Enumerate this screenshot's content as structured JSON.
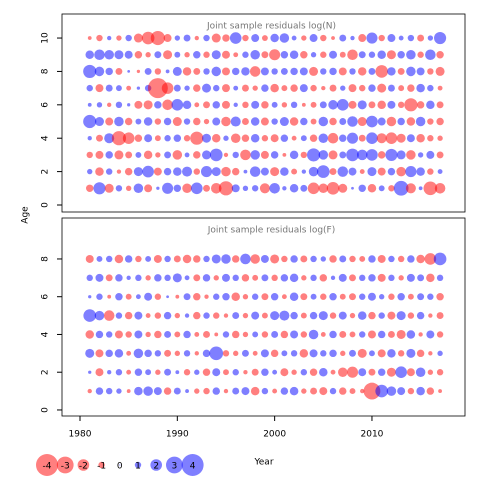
{
  "chart_data": [
    {
      "type": "bubble",
      "title": "Joint sample residuals log(N)",
      "x": [
        1981,
        1982,
        1983,
        1984,
        1985,
        1986,
        1987,
        1988,
        1989,
        1990,
        1991,
        1992,
        1993,
        1994,
        1995,
        1996,
        1997,
        1998,
        1999,
        2000,
        2001,
        2002,
        2003,
        2004,
        2005,
        2006,
        2007,
        2008,
        2009,
        2010,
        2011,
        2012,
        2013,
        2014,
        2015,
        2016,
        2017
      ],
      "ages": [
        1,
        2,
        3,
        4,
        5,
        6,
        7,
        8,
        9,
        10
      ],
      "values": [
        [
          -1.2,
          2.1,
          -1.5,
          1.0,
          -0.8,
          1.6,
          -1.3,
          0.4,
          1.9,
          1.2,
          -1.6,
          2.0,
          -1.1,
          -1.8,
          -2.5,
          1.3,
          0.8,
          1.0,
          -1.7,
          1.8,
          0.6,
          1.4,
          1.1,
          -2.0,
          -1.6,
          -2.2,
          -1.5,
          0.3,
          1.2,
          -1.4,
          0.9,
          -1.0,
          2.6,
          -1.7,
          0.5,
          -2.4,
          -1.8
        ],
        [
          0.8,
          -1.4,
          1.0,
          -0.6,
          -1.2,
          1.5,
          2.0,
          -1.3,
          1.2,
          1.4,
          1.7,
          -1.0,
          1.9,
          1.5,
          -1.6,
          -1.2,
          0.5,
          1.8,
          1.3,
          -1.5,
          1.4,
          -0.9,
          0.6,
          1.6,
          2.2,
          -1.1,
          1.8,
          1.3,
          -0.7,
          1.5,
          -1.3,
          1.2,
          -1.6,
          1.9,
          1.4,
          -1.0,
          0.7
        ],
        [
          -1.0,
          -1.3,
          1.2,
          -1.5,
          -1.1,
          0.9,
          -1.4,
          -0.8,
          1.1,
          -1.6,
          0.7,
          -1.2,
          1.5,
          2.2,
          -0.6,
          1.0,
          -1.8,
          1.6,
          -1.3,
          1.2,
          -0.5,
          1.4,
          -1.0,
          2.3,
          1.6,
          -1.5,
          1.1,
          2.2,
          1.8,
          2.0,
          -1.2,
          2.1,
          1.5,
          -1.6,
          0.8,
          1.3,
          -1.1
        ],
        [
          0.6,
          -1.1,
          1.7,
          -2.5,
          -2.0,
          -1.2,
          1.3,
          -0.9,
          1.0,
          1.2,
          -1.0,
          -2.3,
          1.5,
          -1.4,
          0.8,
          -1.6,
          -1.2,
          1.4,
          -1.0,
          -1.3,
          1.2,
          -0.7,
          0.9,
          -1.2,
          1.6,
          -1.8,
          1.2,
          1.9,
          -1.1,
          2.0,
          -1.7,
          -2.0,
          -1.5,
          1.3,
          -1.4,
          -1.0,
          -0.8
        ],
        [
          2.3,
          1.5,
          -1.3,
          1.6,
          -1.2,
          0.9,
          1.4,
          -1.0,
          1.2,
          -1.5,
          1.0,
          -1.2,
          -0.8,
          1.3,
          -1.6,
          1.7,
          -1.1,
          1.4,
          -1.3,
          1.0,
          1.5,
          -1.4,
          1.2,
          -0.9,
          1.6,
          -1.2,
          1.1,
          1.8,
          -1.5,
          2.0,
          1.3,
          -1.6,
          1.2,
          -1.4,
          1.6,
          -1.0,
          -1.2
        ],
        [
          0.5,
          0.8,
          -0.6,
          1.0,
          0.4,
          -1.3,
          -1.5,
          1.2,
          -1.8,
          2.0,
          1.4,
          -0.7,
          -1.1,
          1.2,
          -1.3,
          0.6,
          -1.0,
          1.3,
          -1.2,
          0.9,
          -0.8,
          1.0,
          -0.5,
          -0.9,
          1.1,
          1.6,
          2.0,
          -1.3,
          1.5,
          -1.1,
          -1.4,
          1.3,
          -1.0,
          -2.3,
          -1.2,
          1.4,
          -1.1
        ],
        [
          1.0,
          -1.3,
          1.1,
          0.9,
          -0.7,
          0.4,
          1.0,
          -3.6,
          -2.0,
          1.1,
          0.8,
          -1.2,
          1.5,
          1.0,
          -1.3,
          0.7,
          -1.1,
          -0.8,
          1.2,
          -1.4,
          -0.9,
          -1.2,
          1.3,
          -1.0,
          -0.6,
          -1.1,
          0.8,
          -1.3,
          -1.0,
          1.2,
          -1.5,
          1.1,
          -0.9,
          -1.2,
          1.4,
          1.0,
          -0.7
        ],
        [
          2.3,
          1.6,
          1.2,
          -1.1,
          0.3,
          -0.4,
          1.1,
          -1.0,
          0.5,
          1.5,
          -1.4,
          -1.1,
          1.0,
          1.6,
          -1.3,
          1.2,
          1.4,
          -1.8,
          1.3,
          1.0,
          1.1,
          1.2,
          1.3,
          -1.5,
          1.0,
          1.2,
          -1.3,
          1.0,
          -1.4,
          1.1,
          -2.2,
          1.4,
          -1.1,
          1.6,
          1.3,
          -1.0,
          -1.5
        ],
        [
          1.4,
          1.8,
          1.6,
          1.5,
          1.3,
          -1.2,
          -0.8,
          1.1,
          -1.5,
          0.9,
          -0.8,
          1.2,
          -1.0,
          1.5,
          -1.3,
          -0.7,
          1.0,
          1.6,
          -1.1,
          -1.9,
          1.2,
          1.4,
          -1.2,
          0.8,
          -1.0,
          1.3,
          -0.9,
          -1.8,
          1.1,
          1.0,
          1.4,
          -1.5,
          1.2,
          1.6,
          -1.0,
          1.8,
          -1.2
        ],
        [
          -0.5,
          -1.0,
          0.6,
          -0.8,
          1.0,
          -1.5,
          -2.2,
          -2.5,
          -1.3,
          0.8,
          1.1,
          -0.6,
          1.0,
          -1.5,
          -1.2,
          2.0,
          -1.0,
          1.3,
          -0.9,
          1.4,
          1.6,
          0.7,
          -0.8,
          1.3,
          -1.0,
          -0.5,
          1.1,
          0.6,
          -1.3,
          1.9,
          -1.0,
          1.3,
          0.7,
          1.0,
          -1.1,
          0.8,
          2.1
        ]
      ],
      "xlim": [
        1978.15,
        2019.56
      ],
      "ylim": [
        -0.42,
        11.44
      ],
      "yticks": [
        0,
        2,
        4,
        6,
        8,
        10
      ],
      "colors": {
        "positive": "#0000ff",
        "negative": "#ff0000"
      }
    },
    {
      "type": "bubble",
      "title": "Joint sample residuals log(F)",
      "x": [
        1981,
        1982,
        1983,
        1984,
        1985,
        1986,
        1987,
        1988,
        1989,
        1990,
        1991,
        1992,
        1993,
        1994,
        1995,
        1996,
        1997,
        1998,
        1999,
        2000,
        2001,
        2002,
        2003,
        2004,
        2005,
        2006,
        2007,
        2008,
        2009,
        2010,
        2011,
        2012,
        2013,
        2014,
        2015,
        2016,
        2017
      ],
      "ages": [
        1,
        2,
        3,
        4,
        5,
        6,
        7,
        8
      ],
      "values": [
        [
          -0.6,
          1.2,
          1.0,
          0.8,
          -0.5,
          1.4,
          1.6,
          1.3,
          -1.2,
          1.1,
          0.5,
          -0.8,
          -1.0,
          1.2,
          -0.6,
          1.1,
          1.3,
          -1.4,
          1.0,
          -0.7,
          1.2,
          1.4,
          -0.8,
          -1.1,
          -1.3,
          1.0,
          -1.2,
          -0.9,
          -0.6,
          -3.0,
          2.2,
          1.6,
          1.3,
          -1.0,
          1.4,
          -1.2,
          -0.5
        ],
        [
          0.4,
          -1.3,
          0.6,
          1.0,
          -0.7,
          1.2,
          0.9,
          -0.8,
          1.1,
          0.5,
          -1.0,
          0.8,
          -1.2,
          1.3,
          -0.9,
          1.0,
          -0.6,
          -1.1,
          1.2,
          0.7,
          -1.3,
          -0.8,
          1.0,
          -1.2,
          1.4,
          -0.7,
          -1.6,
          -1.9,
          1.3,
          -1.1,
          1.2,
          -1.5,
          2.0,
          -1.3,
          1.6,
          -0.8,
          -1.0
        ],
        [
          1.5,
          -1.3,
          1.2,
          1.4,
          -0.7,
          1.6,
          1.2,
          1.0,
          -1.1,
          -0.8,
          1.0,
          -0.6,
          1.2,
          2.4,
          -1.0,
          -0.8,
          1.1,
          -0.7,
          1.3,
          -1.2,
          0.9,
          1.0,
          -1.4,
          1.3,
          1.0,
          1.2,
          -0.8,
          1.1,
          -1.5,
          0.9,
          -1.3,
          1.4,
          -1.0,
          1.5,
          -1.2,
          -0.6,
          0.8
        ],
        [
          -1.4,
          1.2,
          1.0,
          -1.3,
          -1.0,
          1.3,
          -0.8,
          -1.2,
          1.1,
          -0.9,
          1.2,
          -0.7,
          -1.1,
          -0.5,
          1.0,
          -1.2,
          -0.8,
          0.9,
          -1.0,
          1.1,
          -1.2,
          1.3,
          -1.0,
          1.6,
          -0.7,
          1.2,
          -1.1,
          -0.9,
          1.0,
          -1.3,
          1.2,
          -1.1,
          -1.5,
          1.4,
          -0.6,
          1.3,
          -1.0
        ],
        [
          2.2,
          1.6,
          -1.8,
          1.0,
          -1.2,
          1.3,
          -0.7,
          -1.0,
          1.2,
          -0.8,
          0.6,
          -1.2,
          1.0,
          -1.0,
          -0.6,
          1.1,
          -0.8,
          1.3,
          -0.9,
          1.5,
          1.7,
          1.2,
          -0.9,
          1.2,
          1.5,
          -1.0,
          1.3,
          -0.8,
          1.4,
          -1.2,
          1.0,
          -1.3,
          1.5,
          -1.0,
          1.2,
          -0.6,
          -1.1
        ],
        [
          0.4,
          1.0,
          -0.5,
          1.2,
          -0.9,
          0.7,
          1.3,
          -1.0,
          0.3,
          -0.5,
          1.1,
          -1.2,
          -0.6,
          1.0,
          1.2,
          -1.4,
          -0.8,
          1.0,
          -1.1,
          1.2,
          -0.7,
          1.4,
          -1.1,
          0.9,
          -1.0,
          1.2,
          -0.9,
          -1.1,
          1.0,
          1.3,
          0.8,
          -1.0,
          1.2,
          -0.9,
          1.1,
          1.0,
          -1.2
        ],
        [
          1.0,
          1.3,
          -1.1,
          1.2,
          0.6,
          1.0,
          -0.8,
          1.2,
          1.0,
          1.5,
          0.7,
          -1.1,
          1.2,
          -0.8,
          1.3,
          1.0,
          -1.2,
          -0.9,
          1.1,
          -1.0,
          1.2,
          1.4,
          -0.8,
          1.0,
          -1.2,
          0.6,
          1.3,
          -1.1,
          1.0,
          1.2,
          -1.3,
          1.0,
          -0.8,
          1.3,
          1.1,
          -1.4,
          1.0
        ],
        [
          -1.3,
          0.9,
          1.0,
          -1.4,
          1.2,
          -1.0,
          0.9,
          -1.3,
          1.0,
          -1.1,
          -1.4,
          -1.2,
          1.0,
          1.5,
          1.6,
          -1.2,
          1.8,
          -1.6,
          1.3,
          -1.5,
          -1.0,
          1.2,
          -1.1,
          1.0,
          0.8,
          -1.2,
          1.1,
          -1.0,
          -0.9,
          1.2,
          -1.3,
          1.0,
          -1.0,
          1.2,
          -1.4,
          -2.0,
          2.2
        ]
      ],
      "xlim": [
        1978.15,
        2019.56
      ],
      "ylim": [
        -0.32,
        10.17
      ],
      "yticks": [
        0,
        2,
        4,
        6,
        8
      ],
      "xticks": [
        1980,
        1990,
        2000,
        2010
      ],
      "colors": {
        "positive": "#0000ff",
        "negative": "#ff0000"
      }
    }
  ],
  "ylabel": "Age",
  "xlabel": "Year",
  "legend": {
    "values": [
      -4,
      -3,
      -2,
      -1,
      0,
      1,
      2,
      3,
      4
    ]
  }
}
